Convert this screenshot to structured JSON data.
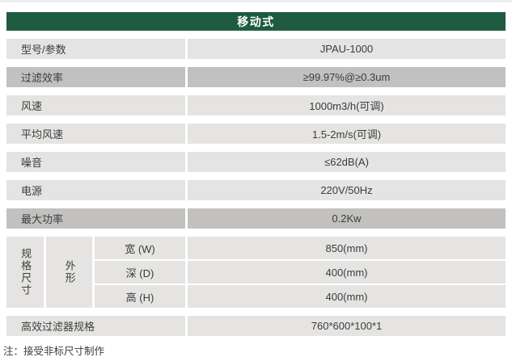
{
  "header": {
    "title": "移动式"
  },
  "table": {
    "rows": [
      {
        "label": "型号/参数",
        "value": "JPAU-1000",
        "shade": "light"
      },
      {
        "label": "过滤效率",
        "value": "≥99.97%@≥0.3um",
        "shade": "dark"
      },
      {
        "label": "风速",
        "value": "1000m3/h(可调)",
        "shade": "light"
      },
      {
        "label": "平均风速",
        "value": "1.5-2m/s(可调)",
        "shade": "light"
      },
      {
        "label": "噪音",
        "value": "≤62dB(A)",
        "shade": "light"
      },
      {
        "label": "电源",
        "value": "220V/50Hz",
        "shade": "light"
      },
      {
        "label": "最大功率",
        "value": "0.2Kw",
        "shade": "dark"
      }
    ],
    "dimensions": {
      "group_label": "规格尺寸",
      "sub_group_label": "外形",
      "rows": [
        {
          "label": "宽 (W)",
          "value": "850(mm)"
        },
        {
          "label": "深 (D)",
          "value": "400(mm)"
        },
        {
          "label": "高 (H)",
          "value": "400(mm)"
        }
      ]
    },
    "footer_row": {
      "label": "高效过滤器规格",
      "value": "760*600*100*1"
    }
  },
  "note": "注：接受非标尺寸制作",
  "colors": {
    "header_green": "#1e5b40",
    "row_light": "#e5e4e3",
    "row_dark": "#c2c1c0",
    "text": "#3c3c3c",
    "top_strip": "#ededed"
  }
}
